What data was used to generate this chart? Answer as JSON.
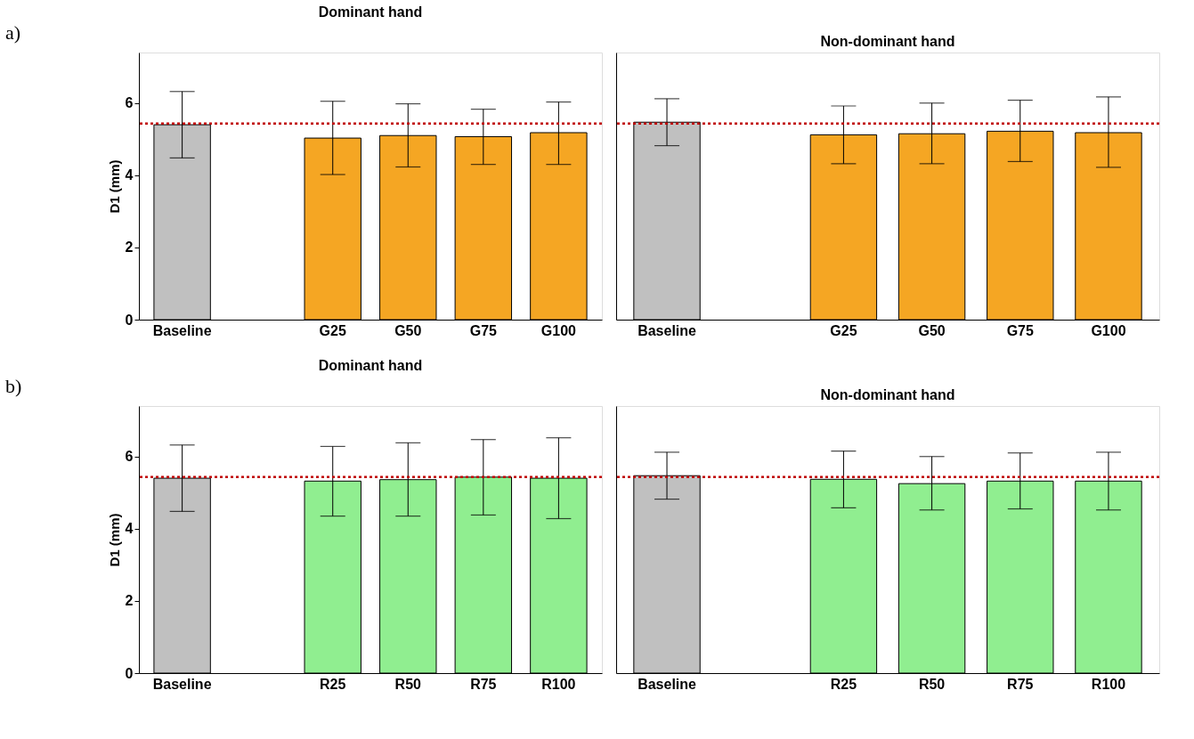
{
  "chart_data": [
    {
      "type": "bar",
      "title": "Dominant hand",
      "ylabel": "D1 (mm)",
      "annotations": [
        "a)"
      ],
      "categories": [
        "Baseline",
        null,
        "G25",
        "G50",
        "G75",
        "G100"
      ],
      "values": [
        5.4,
        null,
        5.03,
        5.1,
        5.07,
        5.18
      ],
      "colors": [
        "#c0c0c0",
        "#c0c0c0",
        "#f5a623",
        "#f5a623",
        "#f5a623",
        "#f5a623"
      ],
      "errors": [
        [
          4.48,
          6.32
        ],
        null,
        [
          4.02,
          6.05
        ],
        [
          4.23,
          5.98
        ],
        [
          4.3,
          5.83
        ],
        [
          4.3,
          6.03
        ]
      ],
      "ylim": [
        0,
        7.4
      ],
      "yticks": [
        0,
        2,
        4,
        6
      ],
      "grid": false,
      "ref_lines": [
        {
          "axis": "y",
          "value": 5.43,
          "color": "#c00000",
          "line_style": "dotted"
        }
      ]
    },
    {
      "type": "bar",
      "title": "Non-dominant hand",
      "categories": [
        "Baseline",
        null,
        "G25",
        "G50",
        "G75",
        "G100"
      ],
      "values": [
        5.47,
        null,
        5.12,
        5.15,
        5.22,
        5.18
      ],
      "colors": [
        "#c0c0c0",
        "#c0c0c0",
        "#f5a623",
        "#f5a623",
        "#f5a623",
        "#f5a623"
      ],
      "errors": [
        [
          4.82,
          6.12
        ],
        null,
        [
          4.32,
          5.92
        ],
        [
          4.32,
          6.0
        ],
        [
          4.38,
          6.08
        ],
        [
          4.22,
          6.17
        ]
      ],
      "ylim": [
        0,
        7.4
      ],
      "tick_labels": "x",
      "grid": false,
      "ref_lines": [
        {
          "axis": "y",
          "value": 5.43,
          "color": "#c00000",
          "line_style": "dotted"
        }
      ]
    },
    {
      "type": "bar",
      "title": "Dominant hand",
      "ylabel": "D1 (mm)",
      "annotations": [
        "b)"
      ],
      "categories": [
        "Baseline",
        null,
        "R25",
        "R50",
        "R75",
        "R100"
      ],
      "values": [
        5.4,
        null,
        5.32,
        5.36,
        5.43,
        5.4
      ],
      "colors": [
        "#c0c0c0",
        "#c0c0c0",
        "#90ee90",
        "#90ee90",
        "#90ee90",
        "#90ee90"
      ],
      "errors": [
        [
          4.48,
          6.32
        ],
        null,
        [
          4.35,
          6.28
        ],
        [
          4.35,
          6.38
        ],
        [
          4.38,
          6.47
        ],
        [
          4.28,
          6.52
        ]
      ],
      "ylim": [
        0,
        7.4
      ],
      "yticks": [
        0,
        2,
        4,
        6
      ],
      "grid": false,
      "ref_lines": [
        {
          "axis": "y",
          "value": 5.43,
          "color": "#c00000",
          "line_style": "dotted"
        }
      ]
    },
    {
      "type": "bar",
      "title": "Non-dominant hand",
      "categories": [
        "Baseline",
        null,
        "R25",
        "R50",
        "R75",
        "R100"
      ],
      "values": [
        5.47,
        null,
        5.37,
        5.25,
        5.32,
        5.32
      ],
      "colors": [
        "#c0c0c0",
        "#c0c0c0",
        "#90ee90",
        "#90ee90",
        "#90ee90",
        "#90ee90"
      ],
      "errors": [
        [
          4.82,
          6.12
        ],
        null,
        [
          4.58,
          6.15
        ],
        [
          4.52,
          6.0
        ],
        [
          4.55,
          6.1
        ],
        [
          4.52,
          6.12
        ]
      ],
      "ylim": [
        0,
        7.4
      ],
      "tick_labels": "x",
      "grid": false,
      "ref_lines": [
        {
          "axis": "y",
          "value": 5.43,
          "color": "#c00000",
          "line_style": "dotted"
        }
      ]
    }
  ]
}
